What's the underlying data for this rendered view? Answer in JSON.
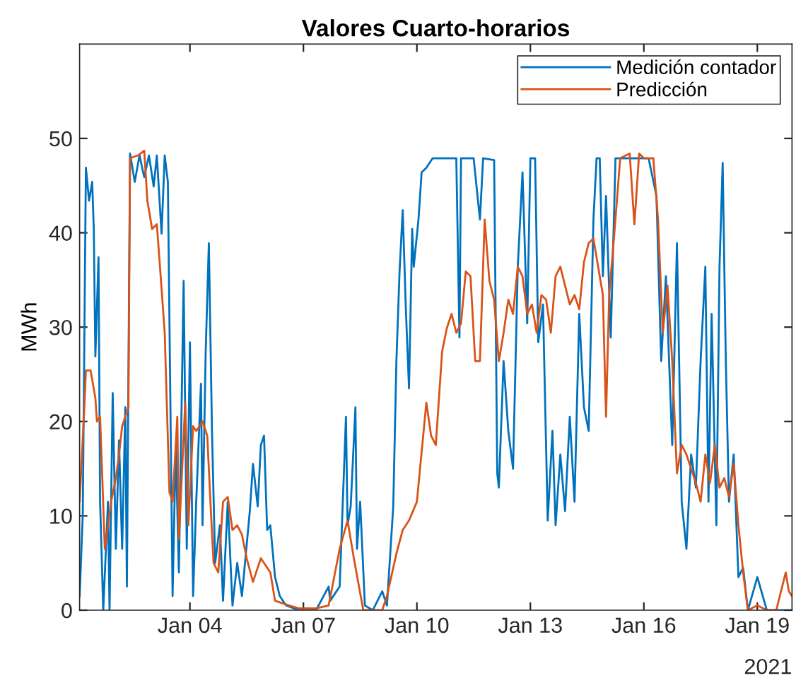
{
  "chart_data": {
    "type": "line",
    "title": "Valores Cuarto-horarios",
    "ylabel": "MWh",
    "xlim": [
      "2021-01-01T02:00",
      "2021-01-19T22:00"
    ],
    "ylim": [
      0,
      60
    ],
    "xticks": [
      {
        "value": "2021-01-04",
        "label": "Jan 04"
      },
      {
        "value": "2021-01-07",
        "label": "Jan 07"
      },
      {
        "value": "2021-01-10",
        "label": "Jan 10"
      },
      {
        "value": "2021-01-13",
        "label": "Jan 13"
      },
      {
        "value": "2021-01-16",
        "label": "Jan 16"
      },
      {
        "value": "2021-01-19",
        "label": "Jan 19"
      }
    ],
    "yticks": [
      0,
      10,
      20,
      30,
      40,
      50
    ],
    "annotations": [
      "2021"
    ],
    "grid": false,
    "legend": "top right",
    "marker": "none",
    "line_style": "solid",
    "series": [
      {
        "name": "Medición contador",
        "color": "#0072bd",
        "x": [
          "2021-01-01T02:00",
          "2021-01-01T04:00",
          "2021-01-01T06:00",
          "2021-01-01T08:00",
          "2021-01-01T10:00",
          "2021-01-01T11:00",
          "2021-01-01T12:00",
          "2021-01-01T14:00",
          "2021-01-01T15:00",
          "2021-01-01T17:00",
          "2021-01-01T20:00",
          "2021-01-01T21:00",
          "2021-01-01T23:00",
          "2021-01-02T01:00",
          "2021-01-02T03:00",
          "2021-01-02T05:00",
          "2021-01-02T07:00",
          "2021-01-02T08:00",
          "2021-01-02T10:00",
          "2021-01-02T13:00",
          "2021-01-02T16:00",
          "2021-01-02T19:00",
          "2021-01-02T22:00",
          "2021-01-03T01:00",
          "2021-01-03T03:00",
          "2021-01-03T06:00",
          "2021-01-03T08:00",
          "2021-01-03T10:00",
          "2021-01-03T13:00",
          "2021-01-03T15:00",
          "2021-01-03T17:00",
          "2021-01-03T20:00",
          "2021-01-03T22:00",
          "2021-01-04T00:00",
          "2021-01-04T02:00",
          "2021-01-04T04:00",
          "2021-01-04T07:00",
          "2021-01-04T08:00",
          "2021-01-04T10:00",
          "2021-01-04T12:00",
          "2021-01-04T14:00",
          "2021-01-04T16:00",
          "2021-01-04T19:00",
          "2021-01-04T21:00",
          "2021-01-05T00:00",
          "2021-01-05T03:00",
          "2021-01-05T06:00",
          "2021-01-05T09:00",
          "2021-01-05T14:00",
          "2021-01-05T16:00",
          "2021-01-05T19:00",
          "2021-01-05T21:00",
          "2021-01-05T23:00",
          "2021-01-06T01:00",
          "2021-01-06T03:00",
          "2021-01-06T06:00",
          "2021-01-06T09:00",
          "2021-01-06T13:00",
          "2021-01-06T21:00",
          "2021-01-07T08:00",
          "2021-01-07T16:00",
          "2021-01-07T17:00",
          "2021-01-07T23:00",
          "2021-01-08T03:00",
          "2021-01-08T04:00",
          "2021-01-08T06:00",
          "2021-01-08T09:00",
          "2021-01-08T10:00",
          "2021-01-08T12:00",
          "2021-01-08T15:00",
          "2021-01-08T20:00",
          "2021-01-09T02:00",
          "2021-01-09T05:00",
          "2021-01-09T09:00",
          "2021-01-09T11:00",
          "2021-01-09T13:00",
          "2021-01-09T15:00",
          "2021-01-09T17:00",
          "2021-01-09T19:00",
          "2021-01-09T21:00",
          "2021-01-09T22:00",
          "2021-01-10T01:00",
          "2021-01-10T03:00",
          "2021-01-10T06:00",
          "2021-01-10T10:00",
          "2021-01-10T19:00",
          "2021-01-11T01:00",
          "2021-01-11T03:00",
          "2021-01-11T04:00",
          "2021-01-11T12:00",
          "2021-01-11T16:00",
          "2021-01-11T18:00",
          "2021-01-12T01:00",
          "2021-01-12T03:00",
          "2021-01-12T04:00",
          "2021-01-12T07:00",
          "2021-01-12T10:00",
          "2021-01-12T13:00",
          "2021-01-12T16:00",
          "2021-01-12T19:00",
          "2021-01-12T22:00",
          "2021-01-13T00:00",
          "2021-01-13T03:00",
          "2021-01-13T05:00",
          "2021-01-13T08:00",
          "2021-01-13T11:00",
          "2021-01-13T14:00",
          "2021-01-13T16:00",
          "2021-01-13T19:00",
          "2021-01-13T22:00",
          "2021-01-14T01:00",
          "2021-01-14T04:00",
          "2021-01-14T07:00",
          "2021-01-14T10:00",
          "2021-01-14T13:00",
          "2021-01-14T16:00",
          "2021-01-14T18:00",
          "2021-01-14T20:00",
          "2021-01-14T22:00",
          "2021-01-15T00:00",
          "2021-01-15T03:00",
          "2021-01-15T06:00",
          "2021-01-15T21:00",
          "2021-01-16T03:00",
          "2021-01-16T08:00",
          "2021-01-16T11:00",
          "2021-01-16T14:00",
          "2021-01-16T18:00",
          "2021-01-16T21:00",
          "2021-01-17T00:00",
          "2021-01-17T03:00",
          "2021-01-17T06:00",
          "2021-01-17T09:00",
          "2021-01-17T12:00",
          "2021-01-17T15:00",
          "2021-01-17T17:00",
          "2021-01-17T19:00",
          "2021-01-17T22:00",
          "2021-01-18T00:00",
          "2021-01-18T02:00",
          "2021-01-18T04:00",
          "2021-01-18T06:00",
          "2021-01-18T09:00",
          "2021-01-18T12:00",
          "2021-01-18T15:00",
          "2021-01-18T18:00",
          "2021-01-19T00:00",
          "2021-01-19T06:00",
          "2021-01-19T22:00"
        ],
        "values": [
          1.5,
          10.0,
          46.9,
          43.4,
          45.4,
          40.4,
          26.9,
          37.4,
          11.5,
          0,
          11.5,
          0,
          23.0,
          6.5,
          18.0,
          6.5,
          21.5,
          2.5,
          48.4,
          45.4,
          48.2,
          45.9,
          48.2,
          44.9,
          48.2,
          39.9,
          48.2,
          45.4,
          1.5,
          17.5,
          4.0,
          34.9,
          6.5,
          28.4,
          1.5,
          11.5,
          24.0,
          9.0,
          27.4,
          38.9,
          19.0,
          5.0,
          9.0,
          1.0,
          11.5,
          0.5,
          5.0,
          1.5,
          10.5,
          15.5,
          11.0,
          17.5,
          18.5,
          8.5,
          9.0,
          3.5,
          1.5,
          0.5,
          0,
          0,
          2.5,
          1.0,
          2.5,
          20.5,
          9.0,
          11.0,
          21.5,
          6.5,
          11.5,
          0.5,
          0,
          2.0,
          0.5,
          11.0,
          26.4,
          35.9,
          42.4,
          31.9,
          23.5,
          40.4,
          36.4,
          41.4,
          46.4,
          46.9,
          47.9,
          47.9,
          47.9,
          28.9,
          47.9,
          47.9,
          41.4,
          47.9,
          47.7,
          14.5,
          13.0,
          26.4,
          19.0,
          15.0,
          36.4,
          46.4,
          30.4,
          47.9,
          47.9,
          28.4,
          32.4,
          9.5,
          19.0,
          9.0,
          16.5,
          10.5,
          20.5,
          11.5,
          31.4,
          21.5,
          19.0,
          41.4,
          47.9,
          47.9,
          35.4,
          43.9,
          28.9,
          47.9,
          47.9,
          47.9,
          43.9,
          26.4,
          35.4,
          17.5,
          38.9,
          11.5,
          6.5,
          16.5,
          13.0,
          26.4,
          36.4,
          11.5,
          31.4,
          9.0,
          36.4,
          47.4,
          26.4,
          11.5,
          16.5,
          3.5,
          4.5,
          0,
          3.5,
          0,
          0
        ]
      },
      {
        "name": "Predicción",
        "color": "#d95319",
        "x": [
          "2021-01-01T02:00",
          "2021-01-01T05:00",
          "2021-01-01T06:00",
          "2021-01-01T09:00",
          "2021-01-01T12:00",
          "2021-01-01T13:00",
          "2021-01-01T15:00",
          "2021-01-01T18:00",
          "2021-01-01T20:00",
          "2021-01-01T22:00",
          "2021-01-02T01:00",
          "2021-01-02T03:00",
          "2021-01-02T05:00",
          "2021-01-02T09:00",
          "2021-01-02T10:00",
          "2021-01-02T15:00",
          "2021-01-02T19:00",
          "2021-01-02T21:00",
          "2021-01-03T00:00",
          "2021-01-03T03:00",
          "2021-01-03T05:00",
          "2021-01-03T08:00",
          "2021-01-03T11:00",
          "2021-01-03T13:00",
          "2021-01-03T16:00",
          "2021-01-03T17:00",
          "2021-01-03T21:00",
          "2021-01-03T23:00",
          "2021-01-04T02:00",
          "2021-01-04T04:00",
          "2021-01-04T08:00",
          "2021-01-04T11:00",
          "2021-01-04T13:00",
          "2021-01-04T15:00",
          "2021-01-04T18:00",
          "2021-01-04T21:00",
          "2021-01-05T00:00",
          "2021-01-05T03:00",
          "2021-01-05T06:00",
          "2021-01-05T09:00",
          "2021-01-05T12:00",
          "2021-01-05T16:00",
          "2021-01-05T21:00",
          "2021-01-06T03:00",
          "2021-01-06T06:00",
          "2021-01-06T15:00",
          "2021-01-06T21:00",
          "2021-01-07T08:00",
          "2021-01-07T16:00",
          "2021-01-07T23:00",
          "2021-01-08T04:00",
          "2021-01-08T08:00",
          "2021-01-08T14:00",
          "2021-01-09T02:00",
          "2021-01-09T05:00",
          "2021-01-09T11:00",
          "2021-01-09T15:00",
          "2021-01-09T19:00",
          "2021-01-10T00:00",
          "2021-01-10T06:00",
          "2021-01-10T09:00",
          "2021-01-10T12:00",
          "2021-01-10T16:00",
          "2021-01-10T19:00",
          "2021-01-10T22:00",
          "2021-01-11T01:00",
          "2021-01-11T04:00",
          "2021-01-11T07:00",
          "2021-01-11T10:00",
          "2021-01-11T13:00",
          "2021-01-11T16:00",
          "2021-01-11T19:00",
          "2021-01-11T22:00",
          "2021-01-12T01:00",
          "2021-01-12T04:00",
          "2021-01-12T07:00",
          "2021-01-12T10:00",
          "2021-01-12T13:00",
          "2021-01-12T16:00",
          "2021-01-12T19:00",
          "2021-01-12T22:00",
          "2021-01-13T01:00",
          "2021-01-13T04:00",
          "2021-01-13T07:00",
          "2021-01-13T10:00",
          "2021-01-13T13:00",
          "2021-01-13T16:00",
          "2021-01-13T19:00",
          "2021-01-13T22:00",
          "2021-01-14T01:00",
          "2021-01-14T04:00",
          "2021-01-14T07:00",
          "2021-01-14T10:00",
          "2021-01-14T13:00",
          "2021-01-14T16:00",
          "2021-01-14T19:00",
          "2021-01-14T22:00",
          "2021-01-15T00:00",
          "2021-01-15T02:00",
          "2021-01-15T05:00",
          "2021-01-15T09:00",
          "2021-01-15T15:00",
          "2021-01-15T18:00",
          "2021-01-15T21:00",
          "2021-01-16T00:00",
          "2021-01-16T06:00",
          "2021-01-16T09:00",
          "2021-01-16T12:00",
          "2021-01-16T15:00",
          "2021-01-16T18:00",
          "2021-01-16T21:00",
          "2021-01-17T00:00",
          "2021-01-17T03:00",
          "2021-01-17T09:00",
          "2021-01-17T12:00",
          "2021-01-17T15:00",
          "2021-01-17T18:00",
          "2021-01-17T21:00",
          "2021-01-18T00:00",
          "2021-01-18T03:00",
          "2021-01-18T06:00",
          "2021-01-18T09:00",
          "2021-01-18T12:00",
          "2021-01-18T15:00",
          "2021-01-18T18:00",
          "2021-01-19T00:00",
          "2021-01-19T06:00",
          "2021-01-19T12:00",
          "2021-01-19T18:00",
          "2021-01-19T20:00",
          "2021-01-19T22:00"
        ],
        "values": [
          11.5,
          21.5,
          25.4,
          25.4,
          22.5,
          20.0,
          20.5,
          6.5,
          9.0,
          11.5,
          14.0,
          16.5,
          19.5,
          21.5,
          47.9,
          48.2,
          48.7,
          43.4,
          40.4,
          40.9,
          36.4,
          29.4,
          12.5,
          11.5,
          20.5,
          7.5,
          22.0,
          9.0,
          19.5,
          19.0,
          20.0,
          18.5,
          11.5,
          5.0,
          4.0,
          11.5,
          12.0,
          8.5,
          9.0,
          8.0,
          5.5,
          3.0,
          5.5,
          4.0,
          1.0,
          0.5,
          0.2,
          0.2,
          0.5,
          6.5,
          9.5,
          5.5,
          0,
          0,
          1.5,
          6.0,
          8.5,
          9.5,
          11.5,
          22.0,
          18.5,
          17.5,
          27.4,
          29.9,
          31.4,
          29.4,
          30.4,
          35.9,
          35.4,
          26.4,
          26.4,
          41.4,
          34.9,
          32.9,
          26.4,
          29.4,
          32.9,
          31.4,
          36.4,
          35.4,
          31.4,
          32.4,
          29.4,
          33.4,
          32.9,
          29.4,
          35.4,
          36.4,
          34.4,
          32.4,
          33.4,
          31.9,
          36.9,
          38.9,
          39.4,
          36.4,
          33.4,
          20.5,
          33.4,
          39.4,
          47.9,
          48.4,
          40.9,
          48.4,
          47.9,
          47.9,
          41.4,
          29.4,
          34.4,
          26.4,
          14.5,
          17.5,
          16.5,
          13.5,
          11.5,
          16.5,
          13.5,
          17.5,
          13.0,
          14.0,
          12.0,
          15.5,
          9.0,
          4.0,
          0,
          0.5,
          0,
          0,
          4.0,
          2.0,
          1.5
        ]
      }
    ]
  }
}
